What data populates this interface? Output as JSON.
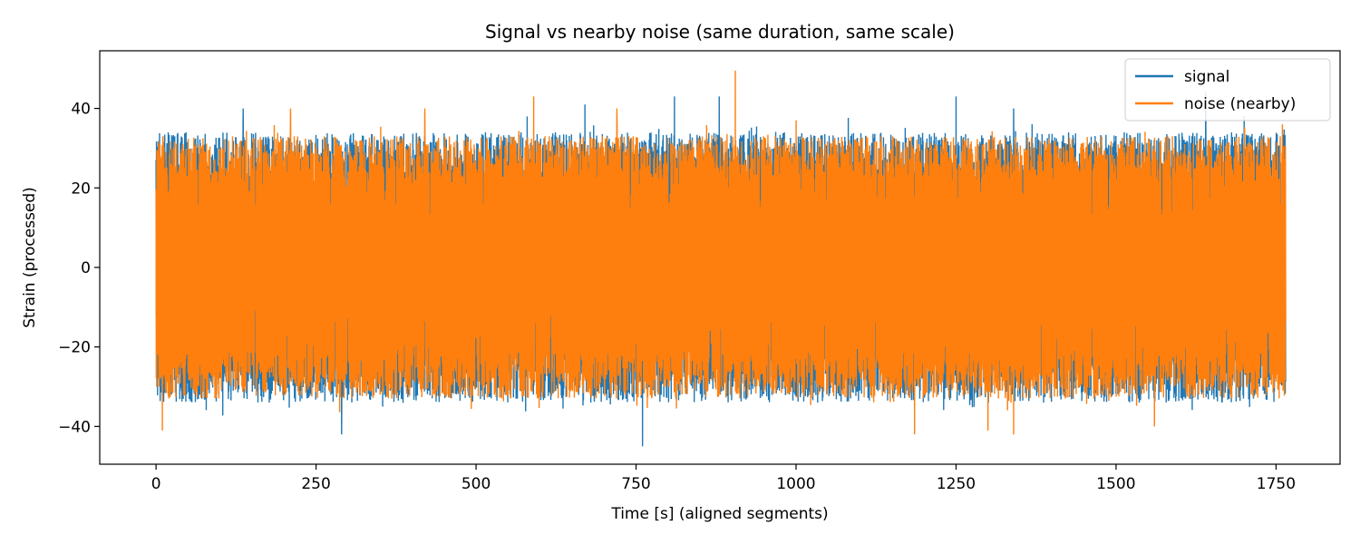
{
  "chart_data": {
    "type": "line",
    "title": "Signal vs nearby noise (same duration, same scale)",
    "xlabel": "Time [s] (aligned segments)",
    "ylabel": "Strain (processed)",
    "xlim": [
      -88,
      1850
    ],
    "ylim": [
      -49.5,
      54.5
    ],
    "xticks": [
      0,
      250,
      500,
      750,
      1000,
      1250,
      1500,
      1750
    ],
    "yticks": [
      -40,
      -20,
      0,
      20,
      40
    ],
    "xtick_labels": [
      "0",
      "250",
      "500",
      "750",
      "1000",
      "1250",
      "1500",
      "1750"
    ],
    "ytick_labels": [
      "−40",
      "−20",
      "0",
      "20",
      "40"
    ],
    "grid": false,
    "legend_position": "top-right",
    "duration_s": 1765,
    "series": [
      {
        "name": "signal",
        "color": "#1f77b4",
        "band_min": -34,
        "band_max": 34,
        "sample_peaks": [
          [
            0,
            27
          ],
          [
            136,
            40
          ],
          [
            290,
            -42
          ],
          [
            580,
            38
          ],
          [
            670,
            41
          ],
          [
            760,
            -45
          ],
          [
            810,
            43
          ],
          [
            880,
            43
          ],
          [
            1250,
            43
          ],
          [
            1340,
            40
          ],
          [
            1640,
            44
          ],
          [
            1700,
            38
          ]
        ]
      },
      {
        "name": "noise (nearby)",
        "color": "#ff7f0e",
        "band_min": -33,
        "band_max": 33,
        "sample_peaks": [
          [
            10,
            -41
          ],
          [
            210,
            40
          ],
          [
            420,
            40
          ],
          [
            590,
            43
          ],
          [
            720,
            40
          ],
          [
            905,
            49.5
          ],
          [
            1000,
            37
          ],
          [
            1185,
            -42
          ],
          [
            1300,
            -41
          ],
          [
            1340,
            -42
          ],
          [
            1560,
            -40
          ],
          [
            1760,
            36
          ]
        ]
      }
    ]
  }
}
